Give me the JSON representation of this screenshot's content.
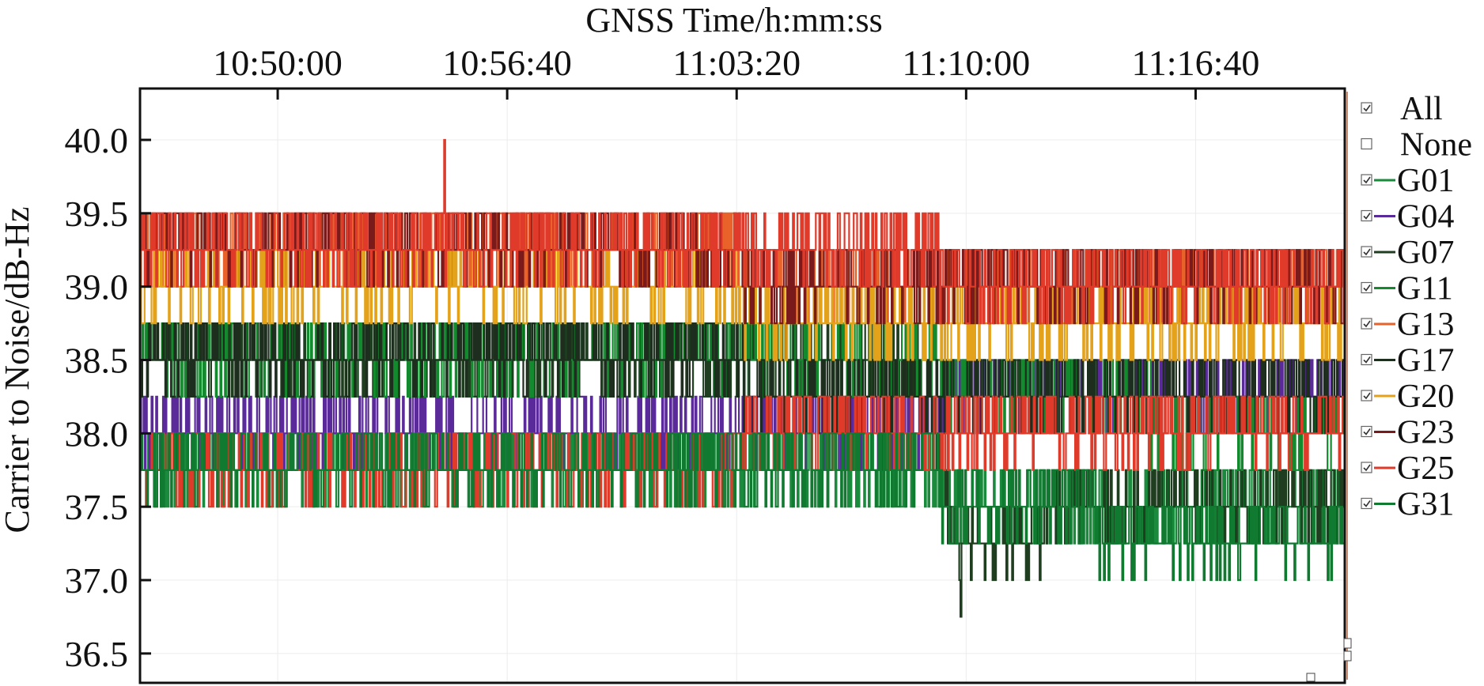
{
  "chart_data": {
    "type": "line",
    "xlabel": "GNSS Time/h:mm:ss",
    "ylabel": "Carrier to Noise/dB-Hz",
    "x_axis": {
      "min": "10:46:00",
      "max": "11:21:00",
      "ticks": [
        "10:50:00",
        "10:56:40",
        "11:03:20",
        "11:10:00",
        "11:16:40"
      ],
      "position": "top"
    },
    "y_axis": {
      "min": 36.3,
      "max": 40.35,
      "ticks": [
        "36.5",
        "37.0",
        "37.5",
        "38.0",
        "38.5",
        "39.0",
        "39.5",
        "40.0"
      ],
      "quantization": 0.25
    },
    "grid": true,
    "legend": {
      "placement": "right",
      "controls": [
        {
          "label": "All",
          "checked": true
        },
        {
          "label": "None",
          "checked": false
        }
      ]
    },
    "series": [
      {
        "name": "G01",
        "color": "#1a8a3c",
        "checked": true,
        "levels": [
          {
            "x": "10:46:00",
            "y": 37.75
          },
          {
            "x": "11:08:40",
            "y": 37.75
          },
          {
            "x": "11:09:40",
            "y": 37.5
          },
          {
            "x": "11:21:00",
            "y": 37.5
          }
        ],
        "jitter": 0.25
      },
      {
        "name": "G04",
        "color": "#5b2a9a",
        "checked": true,
        "levels": [
          {
            "x": "10:46:00",
            "y": 38.0
          },
          {
            "x": "11:08:40",
            "y": 38.0
          },
          {
            "x": "11:09:40",
            "y": 38.25
          },
          {
            "x": "11:21:00",
            "y": 38.25
          }
        ],
        "jitter": 0.25
      },
      {
        "name": "G07",
        "color": "#1f3d1f",
        "checked": true,
        "levels": [
          {
            "x": "10:46:00",
            "y": 38.5
          },
          {
            "x": "11:08:40",
            "y": 38.5
          },
          {
            "x": "11:09:40",
            "y": 37.25
          },
          {
            "x": "11:15:00",
            "y": 37.5
          },
          {
            "x": "11:21:00",
            "y": 37.5
          }
        ],
        "jitter": 0.25
      },
      {
        "name": "G11",
        "color": "#138a2e",
        "checked": true,
        "levels": [
          {
            "x": "10:46:00",
            "y": 38.5
          },
          {
            "x": "11:08:40",
            "y": 38.5
          },
          {
            "x": "11:09:40",
            "y": 38.25
          },
          {
            "x": "11:21:00",
            "y": 38.0
          }
        ],
        "jitter": 0.25
      },
      {
        "name": "G13",
        "color": "#e8622a",
        "checked": true,
        "levels": [
          {
            "x": "10:46:00",
            "y": 39.25
          },
          {
            "x": "11:21:00",
            "y": 39.0
          }
        ],
        "jitter": 0.25
      },
      {
        "name": "G17",
        "color": "#1e2e1e",
        "checked": true,
        "levels": [
          {
            "x": "10:46:00",
            "y": 38.5
          },
          {
            "x": "11:21:00",
            "y": 38.25
          }
        ],
        "jitter": 0.25
      },
      {
        "name": "G20",
        "color": "#e3a21a",
        "checked": true,
        "levels": [
          {
            "x": "10:46:00",
            "y": 39.0
          },
          {
            "x": "11:21:00",
            "y": 38.75
          }
        ],
        "jitter": 0.25
      },
      {
        "name": "G23",
        "color": "#7a1a1a",
        "checked": true,
        "levels": [
          {
            "x": "10:46:00",
            "y": 39.25
          },
          {
            "x": "11:21:00",
            "y": 39.0
          }
        ],
        "jitter": 0.25
      },
      {
        "name": "G25",
        "color": "#e03a2a",
        "checked": true,
        "levels": [
          {
            "x": "10:46:00",
            "y": 39.25
          },
          {
            "x": "11:08:40",
            "y": 39.25
          },
          {
            "x": "11:09:40",
            "y": 39.0
          },
          {
            "x": "11:21:00",
            "y": 39.0
          }
        ],
        "jitter": 0.25,
        "secondary_levels": [
          {
            "x": "10:46:00",
            "y": 37.75
          },
          {
            "x": "11:21:00",
            "y": 38.0
          }
        ]
      },
      {
        "name": "G31",
        "color": "#0f7a30",
        "checked": true,
        "levels": [
          {
            "x": "10:46:00",
            "y": 37.75
          },
          {
            "x": "11:08:40",
            "y": 37.75
          },
          {
            "x": "11:09:40",
            "y": 37.5
          },
          {
            "x": "11:18:00",
            "y": 37.25
          },
          {
            "x": "11:21:00",
            "y": 37.25
          }
        ],
        "jitter": 0.25
      }
    ],
    "notable_points": [
      {
        "series": "G25",
        "x": "10:54:50",
        "y": 40.0
      },
      {
        "series": "G07",
        "x": "11:09:50",
        "y": 36.75
      }
    ]
  }
}
